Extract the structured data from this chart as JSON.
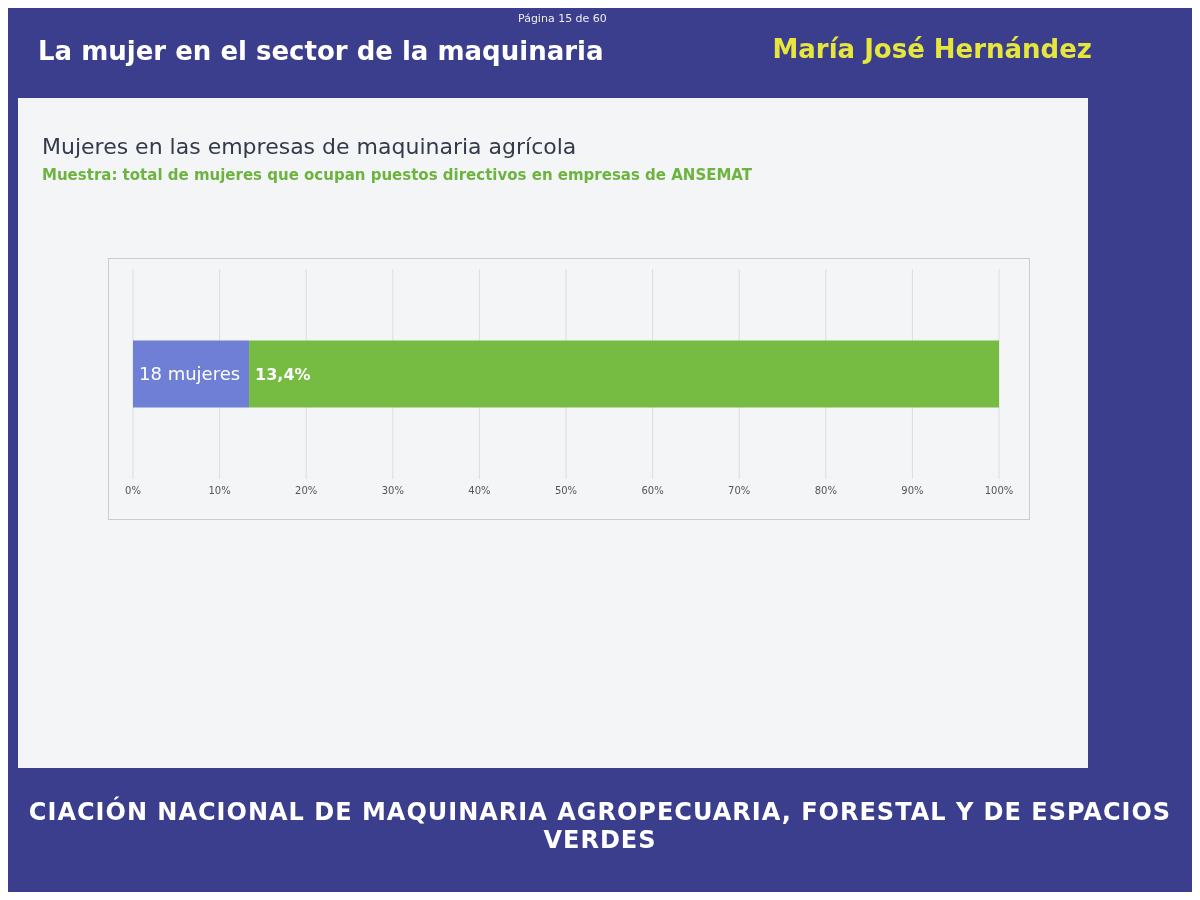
{
  "chart_data": {
    "type": "bar",
    "orientation": "horizontal",
    "stacked": true,
    "title": "Mujeres en las empresas de maquinaria agrícola",
    "subtitle": "Muestra: total de mujeres que ocupan puestos directivos en empresas de ANSEMAT",
    "annotations": [
      "Página 15 de 60",
      "La mujer en el sector de la maquinaria",
      "María José Hernández",
      "CIACIÓN NACIONAL DE MAQUINARIA AGROPECUARIA, FORESTAL Y DE ESPACIOS VERDES",
      {
        "text": "18 mujeres",
        "x": 0
      },
      {
        "text": "13,4%",
        "x": 13.4
      }
    ],
    "categories": [
      null
    ],
    "series": [
      {
        "color": "#6f7fd6",
        "values": [
          13.4
        ]
      },
      {
        "color": "#76bc43",
        "values": [
          86.6
        ]
      }
    ],
    "xlim": [
      0,
      100
    ],
    "xticks": [
      {
        "value": 0,
        "label": "0%"
      },
      {
        "value": 10,
        "label": "10%"
      },
      {
        "value": 20,
        "label": "20%"
      },
      {
        "value": 30,
        "label": "30%"
      },
      {
        "value": 40,
        "label": "40%"
      },
      {
        "value": 50,
        "label": "50%"
      },
      {
        "value": 60,
        "label": "60%"
      },
      {
        "value": 70,
        "label": "70%"
      },
      {
        "value": 80,
        "label": "80%"
      },
      {
        "value": 90,
        "label": "90%"
      },
      {
        "value": 100,
        "label": "100%"
      }
    ],
    "grid": "x",
    "legend": false
  }
}
